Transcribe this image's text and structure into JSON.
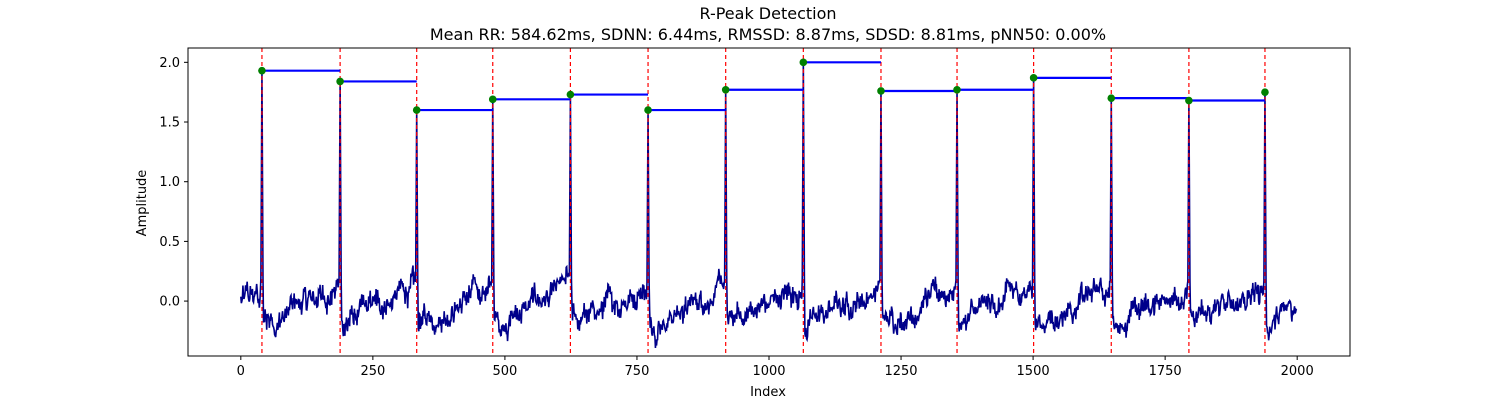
{
  "chart_data": {
    "type": "line",
    "title": "R-Peak Detection",
    "subtitle": "Mean RR: 584.62ms, SDNN: 6.44ms, RMSSD: 8.87ms, SDSD: 8.81ms, pNN50: 0.00%",
    "xlabel": "Index",
    "ylabel": "Amplitude",
    "xlim": [
      -100,
      2100
    ],
    "ylim": [
      -0.46,
      2.12
    ],
    "xticks": [
      0,
      250,
      500,
      750,
      1000,
      1250,
      1500,
      1750,
      2000
    ],
    "yticks": [
      0.0,
      0.5,
      1.0,
      1.5,
      2.0
    ],
    "ytick_labels": [
      "0.0",
      "0.5",
      "1.0",
      "1.5",
      "2.0"
    ],
    "grid": false,
    "legend": "none",
    "signal_length": 2000,
    "r_peaks": [
      {
        "x": 40,
        "y": 1.93
      },
      {
        "x": 188,
        "y": 1.84
      },
      {
        "x": 333,
        "y": 1.6
      },
      {
        "x": 477,
        "y": 1.69
      },
      {
        "x": 624,
        "y": 1.73
      },
      {
        "x": 771,
        "y": 1.6
      },
      {
        "x": 918,
        "y": 1.77
      },
      {
        "x": 1065,
        "y": 2.0
      },
      {
        "x": 1212,
        "y": 1.76
      },
      {
        "x": 1356,
        "y": 1.77
      },
      {
        "x": 1501,
        "y": 1.87
      },
      {
        "x": 1648,
        "y": 1.7
      },
      {
        "x": 1795,
        "y": 1.68
      },
      {
        "x": 1939,
        "y": 1.75
      }
    ],
    "colors": {
      "signal": "#00008b",
      "peak_marker": "#008000",
      "peak_line": "#ff0000",
      "rr_segment": "#0000ff"
    }
  }
}
